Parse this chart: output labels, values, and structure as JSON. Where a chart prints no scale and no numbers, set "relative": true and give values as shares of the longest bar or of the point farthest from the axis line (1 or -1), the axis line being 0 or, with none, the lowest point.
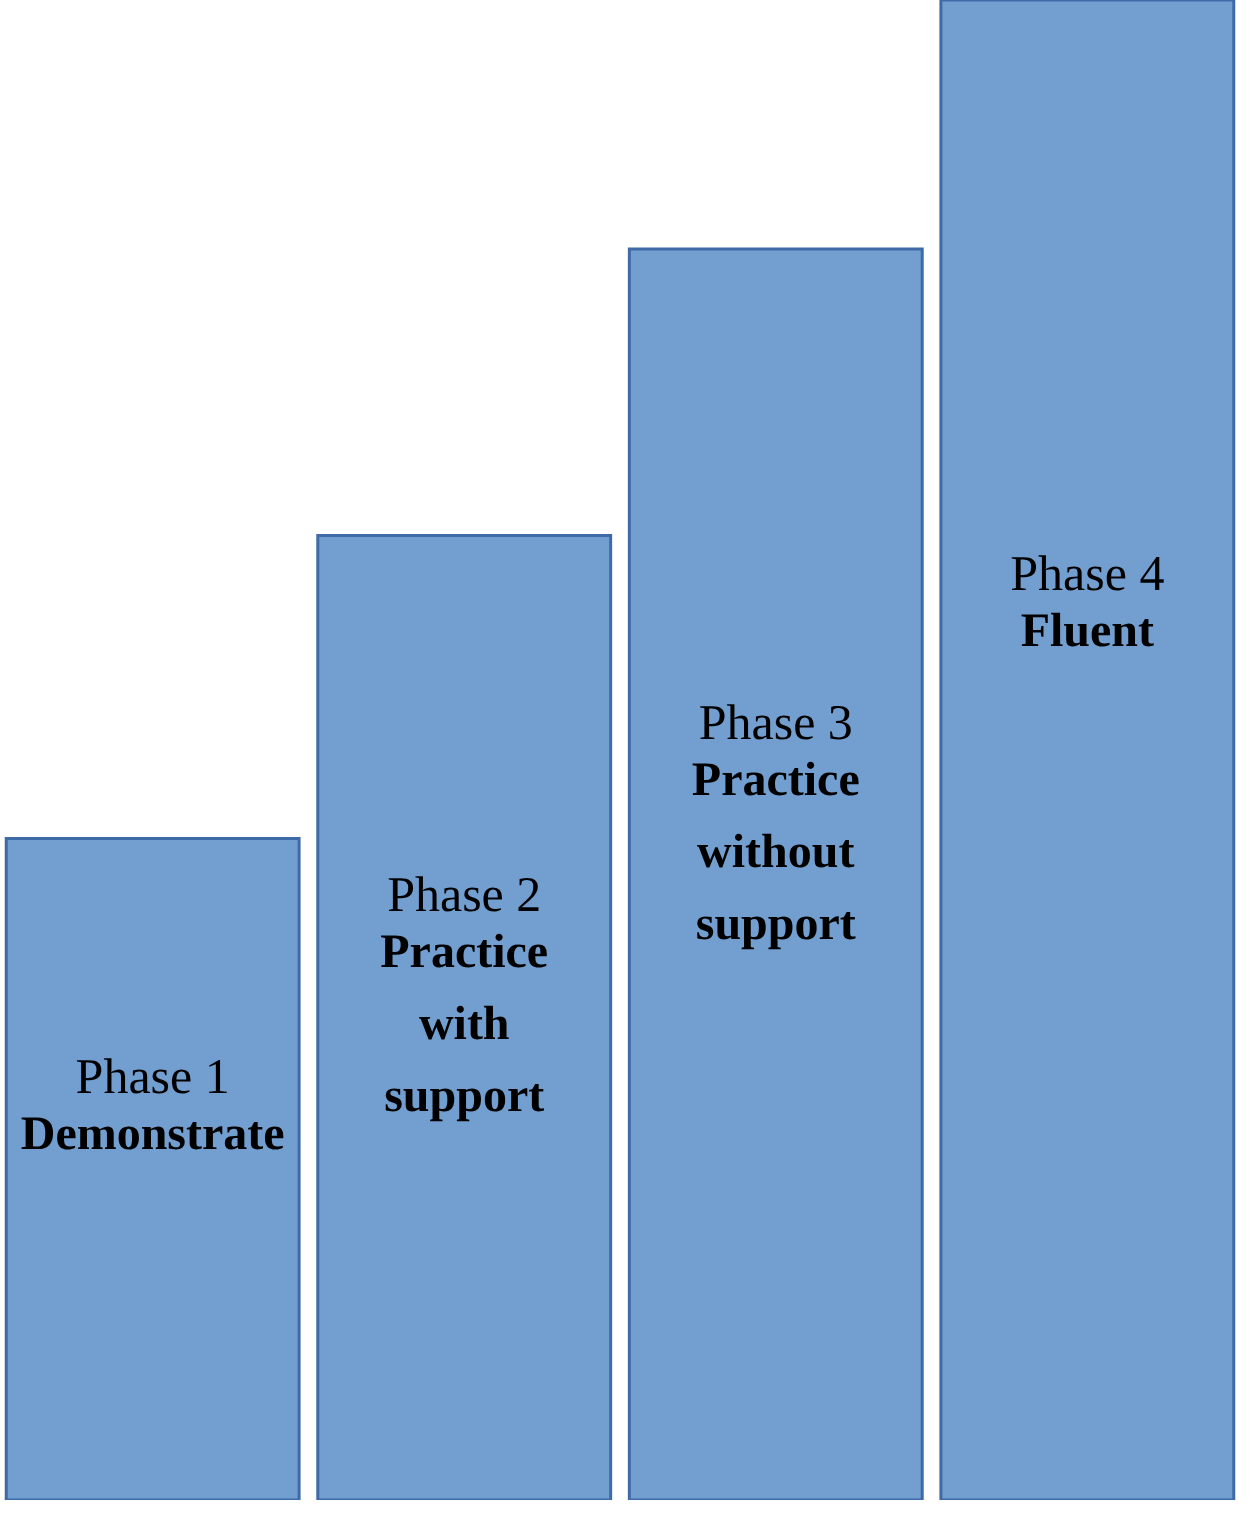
{
  "chart_data": {
    "type": "bar",
    "relative": true,
    "categories": [
      "Phase 1",
      "Phase 2",
      "Phase 3",
      "Phase 4"
    ],
    "values": [
      0.441,
      0.643,
      0.834,
      1
    ],
    "color": "#729fcf",
    "annotations": [
      "Demonstrate",
      "Practice with support",
      "Practice without support",
      "Fluent"
    ]
  }
}
